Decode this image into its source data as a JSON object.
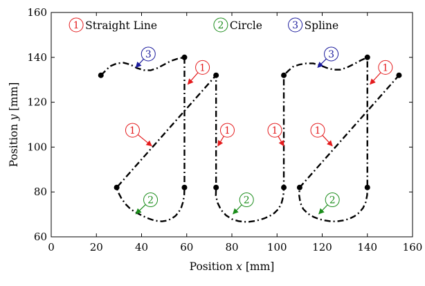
{
  "chart_data": {
    "type": "line",
    "xlabel_prefix": "Position ",
    "xlabel_var": "x",
    "xlabel_unit": " [mm]",
    "ylabel_prefix": "Position ",
    "ylabel_var": "y",
    "ylabel_unit": " [mm]",
    "xlim": [
      0,
      160
    ],
    "ylim": [
      60,
      160
    ],
    "xticks": [
      0,
      20,
      40,
      60,
      80,
      100,
      120,
      140,
      160
    ],
    "yticks": [
      60,
      80,
      100,
      120,
      140,
      160
    ],
    "grid": false,
    "legend_position": "top",
    "legend": [
      {
        "number": "1",
        "label": "Straight Line",
        "color": "#e41a1c"
      },
      {
        "number": "2",
        "label": "Circle",
        "color": "#1a8c1a"
      },
      {
        "number": "3",
        "label": "Spline",
        "color": "#1a1a9c"
      }
    ],
    "path_style": "dash-dot",
    "path_color": "#000000",
    "path": [
      [
        22,
        132
      ],
      [
        24,
        134
      ],
      [
        26,
        136
      ],
      [
        29,
        137.3
      ],
      [
        32,
        137.6
      ],
      [
        35,
        136.8
      ],
      [
        38,
        135.2
      ],
      [
        41,
        134.3
      ],
      [
        44,
        134.2
      ],
      [
        47,
        135.2
      ],
      [
        50,
        136.8
      ],
      [
        53,
        138.4
      ],
      [
        56,
        139.4
      ],
      [
        59,
        140
      ],
      [
        59,
        82
      ],
      [
        58.9,
        78.7
      ],
      [
        58.4,
        75.6
      ],
      [
        57.6,
        73.1
      ],
      [
        56.4,
        70.9
      ],
      [
        55,
        69.3
      ],
      [
        53.1,
        68
      ],
      [
        51.1,
        67.2
      ],
      [
        49,
        66.9
      ],
      [
        46.9,
        67.1
      ],
      [
        44.7,
        67.6
      ],
      [
        42.5,
        68.4
      ],
      [
        40.2,
        69.5
      ],
      [
        37.8,
        70.7
      ],
      [
        35.2,
        72.3
      ],
      [
        32.9,
        74.6
      ],
      [
        31,
        77.3
      ],
      [
        29.7,
        79.8
      ],
      [
        29,
        82
      ],
      [
        73,
        132
      ],
      [
        73,
        82
      ],
      [
        72.9,
        78.4
      ],
      [
        73.7,
        75.1
      ],
      [
        75.2,
        72
      ],
      [
        77.4,
        69.6
      ],
      [
        80,
        67.9
      ],
      [
        82.9,
        67
      ],
      [
        85.4,
        66.7
      ],
      [
        87.5,
        66.7
      ],
      [
        89.7,
        67
      ],
      [
        92,
        67.5
      ],
      [
        94.3,
        68.2
      ],
      [
        96.6,
        69.2
      ],
      [
        98.8,
        70.6
      ],
      [
        100.7,
        72.5
      ],
      [
        102,
        75.1
      ],
      [
        102.8,
        78.2
      ],
      [
        103,
        82
      ],
      [
        103,
        132
      ],
      [
        105,
        134
      ],
      [
        107,
        135.8
      ],
      [
        110,
        136.8
      ],
      [
        113,
        137.3
      ],
      [
        116,
        137.3
      ],
      [
        119,
        136.5
      ],
      [
        122,
        135.3
      ],
      [
        125,
        134.5
      ],
      [
        128,
        134.5
      ],
      [
        131,
        135.5
      ],
      [
        134,
        137
      ],
      [
        137,
        138.6
      ],
      [
        140,
        140
      ],
      [
        140,
        82
      ],
      [
        139.9,
        78.6
      ],
      [
        139.3,
        75.5
      ],
      [
        138.1,
        72.9
      ],
      [
        136.4,
        70.8
      ],
      [
        134.3,
        69.2
      ],
      [
        131.9,
        68
      ],
      [
        129.3,
        67.3
      ],
      [
        126.5,
        66.9
      ],
      [
        123.8,
        66.9
      ],
      [
        121.2,
        67.3
      ],
      [
        118.6,
        67.9
      ],
      [
        116.1,
        68.9
      ],
      [
        113.7,
        70.3
      ],
      [
        111.6,
        72.4
      ],
      [
        110.3,
        75.2
      ],
      [
        109.8,
        78.5
      ],
      [
        110,
        82
      ],
      [
        154,
        132
      ]
    ],
    "points": [
      [
        22,
        132
      ],
      [
        59,
        140
      ],
      [
        59,
        82
      ],
      [
        29,
        82
      ],
      [
        73,
        132
      ],
      [
        73,
        82
      ],
      [
        103,
        82
      ],
      [
        103,
        132
      ],
      [
        140,
        140
      ],
      [
        140,
        82
      ],
      [
        110,
        82
      ],
      [
        154,
        132
      ]
    ],
    "annotations": [
      {
        "number": "3",
        "label_x": 43,
        "label_y": 141.5,
        "arrow_x": 37.5,
        "arrow_y": 135.5,
        "color": "#1a1a9c"
      },
      {
        "number": "1",
        "label_x": 67,
        "label_y": 135.5,
        "arrow_x": 60.5,
        "arrow_y": 128,
        "color": "#e41a1c"
      },
      {
        "number": "1",
        "label_x": 36,
        "label_y": 107.5,
        "arrow_x": 44.5,
        "arrow_y": 100.5,
        "color": "#e41a1c"
      },
      {
        "number": "1",
        "label_x": 78,
        "label_y": 107.5,
        "arrow_x": 73.8,
        "arrow_y": 100.5,
        "color": "#e41a1c"
      },
      {
        "number": "1",
        "label_x": 99,
        "label_y": 107.5,
        "arrow_x": 103,
        "arrow_y": 100.5,
        "color": "#e41a1c"
      },
      {
        "number": "1",
        "label_x": 118,
        "label_y": 107.5,
        "arrow_x": 124.5,
        "arrow_y": 100.5,
        "color": "#e41a1c"
      },
      {
        "number": "1",
        "label_x": 148,
        "label_y": 135.5,
        "arrow_x": 141.2,
        "arrow_y": 128,
        "color": "#e41a1c"
      },
      {
        "number": "3",
        "label_x": 124,
        "label_y": 141.5,
        "arrow_x": 118,
        "arrow_y": 135.5,
        "color": "#1a1a9c"
      },
      {
        "number": "2",
        "label_x": 44,
        "label_y": 76.5,
        "arrow_x": 37.5,
        "arrow_y": 70.2,
        "color": "#1a8c1a"
      },
      {
        "number": "2",
        "label_x": 86.5,
        "label_y": 76.5,
        "arrow_x": 80.5,
        "arrow_y": 70.2,
        "color": "#1a8c1a"
      },
      {
        "number": "2",
        "label_x": 124.5,
        "label_y": 76.5,
        "arrow_x": 118.5,
        "arrow_y": 70.2,
        "color": "#1a8c1a"
      }
    ]
  }
}
